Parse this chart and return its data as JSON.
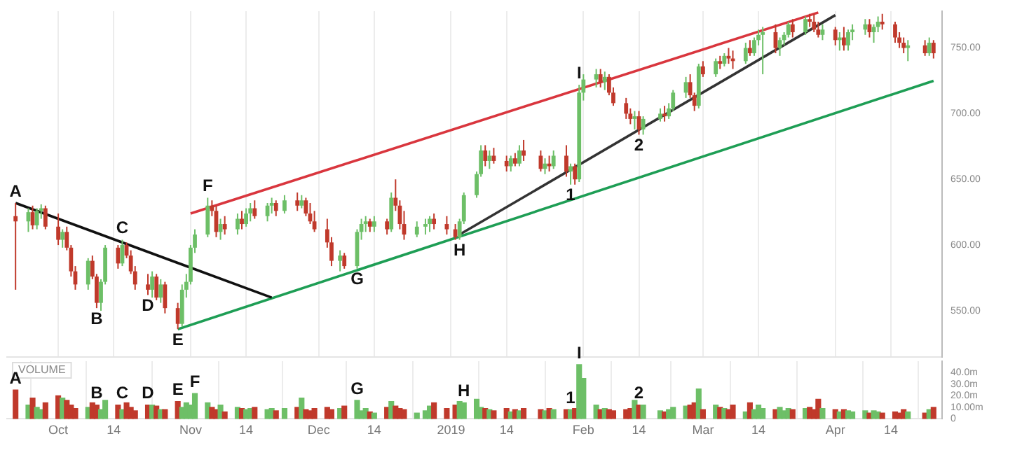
{
  "chart_data": [
    {
      "type": "candlestick",
      "tick_labels": "y",
      "grid": "x",
      "xlim": [
        "2018-09-19",
        "2019-04-26"
      ],
      "xticks": [
        {
          "value": "2018-10-01",
          "label": null
        },
        {
          "value": "2018-10-14",
          "label": null
        },
        {
          "value": "2018-11-01",
          "label": null
        },
        {
          "value": "2018-11-14",
          "label": null
        },
        {
          "value": "2018-12-01",
          "label": null
        },
        {
          "value": "2018-12-14",
          "label": null
        },
        {
          "value": "2019-01-01",
          "label": null
        },
        {
          "value": "2019-01-14",
          "label": null
        },
        {
          "value": "2019-02-01",
          "label": null
        },
        {
          "value": "2019-02-14",
          "label": null
        },
        {
          "value": "2019-03-01",
          "label": null
        },
        {
          "value": "2019-03-14",
          "label": null
        },
        {
          "value": "2019-04-01",
          "label": null
        },
        {
          "value": "2019-04-14",
          "label": null
        }
      ],
      "ylim": [
        515,
        778
      ],
      "yticks": [
        {
          "value": 550,
          "label": "550.00"
        },
        {
          "value": 600,
          "label": "600.00"
        },
        {
          "value": 650,
          "label": "650.00"
        },
        {
          "value": 700,
          "label": "700.00"
        },
        {
          "value": 750,
          "label": "750.00"
        }
      ],
      "x": [
        "2018-09-21",
        "2018-09-24",
        "2018-09-25",
        "2018-09-26",
        "2018-09-27",
        "2018-09-28",
        "2018-10-01",
        "2018-10-02",
        "2018-10-03",
        "2018-10-04",
        "2018-10-05",
        "2018-10-08",
        "2018-10-09",
        "2018-10-10",
        "2018-10-11",
        "2018-10-12",
        "2018-10-15",
        "2018-10-16",
        "2018-10-17",
        "2018-10-18",
        "2018-10-19",
        "2018-10-22",
        "2018-10-23",
        "2018-10-24",
        "2018-10-25",
        "2018-10-26",
        "2018-10-29",
        "2018-10-30",
        "2018-10-31",
        "2018-11-01",
        "2018-11-02",
        "2018-11-05",
        "2018-11-06",
        "2018-11-07",
        "2018-11-08",
        "2018-11-09",
        "2018-11-12",
        "2018-11-13",
        "2018-11-14",
        "2018-11-15",
        "2018-11-16",
        "2018-11-19",
        "2018-11-20",
        "2018-11-21",
        "2018-11-23",
        "2018-11-26",
        "2018-11-27",
        "2018-11-28",
        "2018-11-29",
        "2018-11-30",
        "2018-12-03",
        "2018-12-04",
        "2018-12-06",
        "2018-12-07",
        "2018-12-10",
        "2018-12-11",
        "2018-12-12",
        "2018-12-13",
        "2018-12-14",
        "2018-12-17",
        "2018-12-18",
        "2018-12-19",
        "2018-12-20",
        "2018-12-21",
        "2018-12-24",
        "2018-12-26",
        "2018-12-27",
        "2018-12-28",
        "2018-12-31",
        "2019-01-02",
        "2019-01-03",
        "2019-01-04",
        "2019-01-07",
        "2019-01-08",
        "2019-01-09",
        "2019-01-10",
        "2019-01-11",
        "2019-01-14",
        "2019-01-15",
        "2019-01-16",
        "2019-01-17",
        "2019-01-18",
        "2019-01-22",
        "2019-01-23",
        "2019-01-24",
        "2019-01-25",
        "2019-01-28",
        "2019-01-29",
        "2019-01-30",
        "2019-01-31",
        "2019-02-01",
        "2019-02-04",
        "2019-02-05",
        "2019-02-06",
        "2019-02-07",
        "2019-02-08",
        "2019-02-11",
        "2019-02-12",
        "2019-02-13",
        "2019-02-14",
        "2019-02-15",
        "2019-02-19",
        "2019-02-20",
        "2019-02-21",
        "2019-02-22",
        "2019-02-25",
        "2019-02-26",
        "2019-02-27",
        "2019-02-28",
        "2019-03-01",
        "2019-03-04",
        "2019-03-05",
        "2019-03-06",
        "2019-03-07",
        "2019-03-08",
        "2019-03-11",
        "2019-03-12",
        "2019-03-13",
        "2019-03-14",
        "2019-03-15",
        "2019-03-18",
        "2019-03-19",
        "2019-03-20",
        "2019-03-21",
        "2019-03-22",
        "2019-03-25",
        "2019-03-26",
        "2019-03-27",
        "2019-03-28",
        "2019-03-29",
        "2019-04-01",
        "2019-04-02",
        "2019-04-03",
        "2019-04-04",
        "2019-04-05",
        "2019-04-08",
        "2019-04-09",
        "2019-04-10",
        "2019-04-11",
        "2019-04-12",
        "2019-04-15",
        "2019-04-16",
        "2019-04-17",
        "2019-04-18",
        "2019-04-22",
        "2019-04-23",
        "2019-04-24"
      ],
      "ohlc": [
        [
          622,
          632,
          566,
          618
        ],
        [
          618,
          628,
          610,
          625
        ],
        [
          625,
          630,
          612,
          615
        ],
        [
          615,
          628,
          612,
          626
        ],
        [
          626,
          631,
          620,
          628
        ],
        [
          628,
          630,
          612,
          614
        ],
        [
          614,
          624,
          600,
          604
        ],
        [
          604,
          612,
          598,
          610
        ],
        [
          610,
          614,
          596,
          598
        ],
        [
          598,
          600,
          576,
          580
        ],
        [
          580,
          584,
          566,
          570
        ],
        [
          570,
          590,
          566,
          588
        ],
        [
          588,
          592,
          574,
          576
        ],
        [
          576,
          578,
          552,
          556
        ],
        [
          556,
          574,
          550,
          572
        ],
        [
          572,
          600,
          570,
          598
        ],
        [
          598,
          600,
          582,
          586
        ],
        [
          586,
          604,
          584,
          600
        ],
        [
          600,
          602,
          590,
          592
        ],
        [
          592,
          596,
          578,
          580
        ],
        [
          580,
          584,
          566,
          570
        ],
        [
          570,
          578,
          562,
          566
        ],
        [
          566,
          580,
          560,
          576
        ],
        [
          576,
          578,
          558,
          560
        ],
        [
          560,
          574,
          556,
          570
        ],
        [
          570,
          572,
          548,
          552
        ],
        [
          552,
          556,
          536,
          540
        ],
        [
          540,
          570,
          538,
          566
        ],
        [
          566,
          578,
          560,
          572
        ],
        [
          572,
          600,
          570,
          598
        ],
        [
          598,
          612,
          594,
          608
        ],
        [
          608,
          636,
          606,
          630
        ],
        [
          630,
          634,
          622,
          626
        ],
        [
          626,
          630,
          606,
          610
        ],
        [
          610,
          620,
          604,
          616
        ],
        [
          616,
          622,
          608,
          612
        ],
        [
          612,
          624,
          608,
          620
        ],
        [
          620,
          626,
          612,
          616
        ],
        [
          616,
          628,
          614,
          624
        ],
        [
          624,
          632,
          618,
          628
        ],
        [
          628,
          634,
          620,
          622
        ],
        [
          622,
          632,
          618,
          630
        ],
        [
          630,
          636,
          624,
          632
        ],
        [
          632,
          634,
          622,
          626
        ],
        [
          626,
          638,
          624,
          634
        ],
        [
          634,
          640,
          626,
          630
        ],
        [
          630,
          638,
          628,
          634
        ],
        [
          634,
          636,
          622,
          624
        ],
        [
          624,
          632,
          616,
          618
        ],
        [
          618,
          626,
          610,
          612
        ],
        [
          612,
          620,
          598,
          602
        ],
        [
          602,
          606,
          584,
          588
        ],
        [
          588,
          596,
          580,
          592
        ],
        [
          592,
          594,
          582,
          584
        ],
        [
          584,
          612,
          582,
          610
        ],
        [
          610,
          620,
          604,
          616
        ],
        [
          616,
          622,
          610,
          618
        ],
        [
          618,
          620,
          610,
          614
        ],
        [
          614,
          622,
          610,
          618
        ],
        [
          618,
          620,
          608,
          612
        ],
        [
          612,
          640,
          610,
          636
        ],
        [
          636,
          650,
          626,
          630
        ],
        [
          630,
          634,
          612,
          616
        ],
        [
          616,
          626,
          604,
          608
        ],
        [
          608,
          618,
          606,
          614
        ],
        [
          614,
          620,
          608,
          616
        ],
        [
          616,
          622,
          610,
          620
        ],
        [
          620,
          624,
          612,
          616
        ],
        [
          616,
          622,
          608,
          612
        ],
        [
          612,
          616,
          604,
          606
        ],
        [
          606,
          620,
          604,
          618
        ],
        [
          618,
          640,
          616,
          638
        ],
        [
          638,
          656,
          636,
          654
        ],
        [
          654,
          676,
          652,
          672
        ],
        [
          672,
          676,
          660,
          664
        ],
        [
          664,
          672,
          658,
          668
        ],
        [
          668,
          674,
          662,
          664
        ],
        [
          664,
          668,
          656,
          660
        ],
        [
          660,
          668,
          656,
          666
        ],
        [
          666,
          670,
          660,
          662
        ],
        [
          662,
          676,
          660,
          672
        ],
        [
          672,
          680,
          664,
          668
        ],
        [
          668,
          672,
          656,
          658
        ],
        [
          658,
          666,
          654,
          662
        ],
        [
          662,
          668,
          656,
          660
        ],
        [
          660,
          672,
          658,
          668
        ],
        [
          668,
          676,
          652,
          656
        ],
        [
          656,
          662,
          646,
          660
        ],
        [
          660,
          662,
          646,
          650
        ],
        [
          650,
          722,
          648,
          716
        ],
        [
          716,
          730,
          710,
          726
        ],
        [
          726,
          734,
          720,
          730
        ],
        [
          730,
          734,
          720,
          724
        ],
        [
          724,
          732,
          718,
          728
        ],
        [
          728,
          730,
          714,
          716
        ],
        [
          716,
          720,
          706,
          708
        ],
        [
          708,
          712,
          696,
          700
        ],
        [
          700,
          704,
          692,
          696
        ],
        [
          696,
          702,
          688,
          698
        ],
        [
          698,
          702,
          684,
          688
        ],
        [
          688,
          698,
          684,
          696
        ],
        [
          696,
          704,
          694,
          700
        ],
        [
          700,
          706,
          694,
          698
        ],
        [
          698,
          708,
          696,
          704
        ],
        [
          704,
          718,
          702,
          716
        ],
        [
          716,
          728,
          712,
          724
        ],
        [
          724,
          730,
          712,
          714
        ],
        [
          714,
          716,
          702,
          706
        ],
        [
          706,
          738,
          704,
          736
        ],
        [
          736,
          740,
          728,
          730
        ],
        [
          730,
          742,
          728,
          740
        ],
        [
          740,
          744,
          734,
          738
        ],
        [
          738,
          746,
          736,
          744
        ],
        [
          744,
          750,
          738,
          742
        ],
        [
          742,
          748,
          734,
          740
        ],
        [
          740,
          754,
          738,
          750
        ],
        [
          750,
          756,
          744,
          746
        ],
        [
          746,
          758,
          744,
          756
        ],
        [
          756,
          764,
          752,
          760
        ],
        [
          760,
          766,
          730,
          762
        ],
        [
          762,
          768,
          746,
          750
        ],
        [
          750,
          758,
          744,
          756
        ],
        [
          756,
          762,
          752,
          760
        ],
        [
          760,
          770,
          758,
          768
        ],
        [
          768,
          772,
          758,
          762
        ],
        [
          762,
          774,
          760,
          772
        ],
        [
          772,
          776,
          766,
          770
        ],
        [
          770,
          776,
          762,
          764
        ],
        [
          764,
          770,
          758,
          760
        ],
        [
          760,
          768,
          756,
          764
        ],
        [
          764,
          766,
          752,
          756
        ],
        [
          756,
          762,
          748,
          758
        ],
        [
          758,
          766,
          748,
          752
        ],
        [
          752,
          764,
          748,
          762
        ],
        [
          762,
          768,
          756,
          764
        ],
        [
          764,
          772,
          760,
          768
        ],
        [
          768,
          772,
          758,
          762
        ],
        [
          762,
          768,
          754,
          766
        ],
        [
          766,
          774,
          762,
          770
        ],
        [
          770,
          776,
          764,
          768
        ],
        [
          768,
          770,
          754,
          758
        ],
        [
          758,
          762,
          750,
          754
        ],
        [
          754,
          758,
          746,
          750
        ],
        [
          750,
          756,
          740,
          752
        ],
        [
          752,
          756,
          744,
          746
        ],
        [
          746,
          758,
          744,
          754
        ],
        [
          754,
          756,
          742,
          746
        ]
      ],
      "colors": [
        "#c0392b",
        "#6dbf67",
        "#c0392b",
        "#6dbf67",
        "#6dbf67",
        "#c0392b",
        "#c0392b",
        "#6dbf67",
        "#c0392b",
        "#c0392b",
        "#c0392b",
        "#6dbf67",
        "#c0392b",
        "#c0392b",
        "#6dbf67",
        "#6dbf67",
        "#c0392b",
        "#6dbf67",
        "#c0392b",
        "#c0392b",
        "#c0392b",
        "#c0392b",
        "#6dbf67",
        "#c0392b",
        "#6dbf67",
        "#c0392b",
        "#c0392b",
        "#6dbf67",
        "#6dbf67",
        "#6dbf67",
        "#6dbf67",
        "#6dbf67",
        "#c0392b",
        "#c0392b",
        "#6dbf67",
        "#c0392b",
        "#6dbf67",
        "#c0392b",
        "#6dbf67",
        "#6dbf67",
        "#c0392b",
        "#6dbf67",
        "#6dbf67",
        "#c0392b",
        "#6dbf67",
        "#c0392b",
        "#6dbf67",
        "#c0392b",
        "#c0392b",
        "#c0392b",
        "#c0392b",
        "#c0392b",
        "#6dbf67",
        "#c0392b",
        "#6dbf67",
        "#6dbf67",
        "#6dbf67",
        "#c0392b",
        "#6dbf67",
        "#c0392b",
        "#6dbf67",
        "#c0392b",
        "#c0392b",
        "#c0392b",
        "#6dbf67",
        "#6dbf67",
        "#6dbf67",
        "#c0392b",
        "#c0392b",
        "#c0392b",
        "#6dbf67",
        "#6dbf67",
        "#6dbf67",
        "#6dbf67",
        "#c0392b",
        "#6dbf67",
        "#c0392b",
        "#c0392b",
        "#6dbf67",
        "#c0392b",
        "#6dbf67",
        "#c0392b",
        "#c0392b",
        "#6dbf67",
        "#c0392b",
        "#6dbf67",
        "#c0392b",
        "#6dbf67",
        "#c0392b",
        "#6dbf67",
        "#6dbf67",
        "#6dbf67",
        "#c0392b",
        "#6dbf67",
        "#c0392b",
        "#c0392b",
        "#c0392b",
        "#c0392b",
        "#6dbf67",
        "#c0392b",
        "#6dbf67",
        "#6dbf67",
        "#c0392b",
        "#6dbf67",
        "#6dbf67",
        "#6dbf67",
        "#c0392b",
        "#c0392b",
        "#6dbf67",
        "#c0392b",
        "#6dbf67",
        "#c0392b",
        "#6dbf67",
        "#c0392b",
        "#c0392b",
        "#6dbf67",
        "#c0392b",
        "#6dbf67",
        "#6dbf67",
        "#6dbf67",
        "#c0392b",
        "#6dbf67",
        "#6dbf67",
        "#6dbf67",
        "#c0392b",
        "#6dbf67",
        "#c0392b",
        "#c0392b",
        "#c0392b",
        "#6dbf67",
        "#c0392b",
        "#6dbf67",
        "#c0392b",
        "#6dbf67",
        "#6dbf67",
        "#6dbf67",
        "#c0392b",
        "#6dbf67",
        "#6dbf67",
        "#c0392b",
        "#c0392b",
        "#c0392b",
        "#c0392b",
        "#6dbf67",
        "#c0392b",
        "#6dbf67",
        "#c0392b"
      ],
      "series": [
        {
          "type": "line",
          "color": "#111111",
          "x": [
            "2018-09-21",
            "2018-11-20"
          ],
          "values": [
            632,
            560
          ]
        },
        {
          "type": "line",
          "color": "#d9363e",
          "x": [
            "2018-11-01",
            "2019-03-28"
          ],
          "values": [
            624,
            777
          ]
        },
        {
          "type": "line",
          "color": "#1e9e55",
          "x": [
            "2018-10-29",
            "2019-04-24"
          ],
          "values": [
            536,
            725
          ]
        },
        {
          "type": "line",
          "color": "#333333",
          "x": [
            "2019-01-03",
            "2019-04-01"
          ],
          "values": [
            608,
            775
          ]
        }
      ],
      "annotations": [
        {
          "text": "A",
          "x": "2018-09-21",
          "y": 632
        },
        {
          "text": "B",
          "x": "2018-10-10",
          "y": 552
        },
        {
          "text": "C",
          "x": "2018-10-16",
          "y": 604
        },
        {
          "text": "D",
          "x": "2018-10-22",
          "y": 562
        },
        {
          "text": "E",
          "x": "2018-10-29",
          "y": 536
        },
        {
          "text": "F",
          "x": "2018-11-05",
          "y": 636
        },
        {
          "text": "G",
          "x": "2018-12-10",
          "y": 582
        },
        {
          "text": "H",
          "x": "2019-01-03",
          "y": 604
        },
        {
          "text": "I",
          "x": "2019-01-31",
          "y": 722
        },
        {
          "text": "1",
          "x": "2019-01-29",
          "y": 646
        },
        {
          "text": "2",
          "x": "2019-02-14",
          "y": 684
        }
      ]
    },
    {
      "type": "bar",
      "grid": "x",
      "xlim": [
        "2018-09-19",
        "2019-04-26"
      ],
      "xticks": [
        {
          "value": "2018-10-01",
          "label": "Oct"
        },
        {
          "value": "2018-10-14",
          "label": "14"
        },
        {
          "value": "2018-11-01",
          "label": "Nov"
        },
        {
          "value": "2018-11-14",
          "label": "14"
        },
        {
          "value": "2018-12-01",
          "label": "Dec"
        },
        {
          "value": "2018-12-14",
          "label": "14"
        },
        {
          "value": "2019-01-01",
          "label": "2019"
        },
        {
          "value": "2019-01-14",
          "label": "14"
        },
        {
          "value": "2019-02-01",
          "label": "Feb"
        },
        {
          "value": "2019-02-14",
          "label": "14"
        },
        {
          "value": "2019-03-01",
          "label": "Mar"
        },
        {
          "value": "2019-03-14",
          "label": "14"
        },
        {
          "value": "2019-04-01",
          "label": "Apr"
        },
        {
          "value": "2019-04-14",
          "label": "14"
        }
      ],
      "ylim": [
        0,
        50
      ],
      "yticks": [
        0,
        {
          "value": 10,
          "label": "10.00m"
        },
        {
          "value": 20,
          "label": "20.0m"
        },
        {
          "value": 30,
          "label": "30.0m"
        },
        {
          "value": 40,
          "label": "40.0m"
        }
      ],
      "x": [
        "2018-09-21",
        "2018-09-24",
        "2018-09-25",
        "2018-09-26",
        "2018-09-27",
        "2018-09-28",
        "2018-10-01",
        "2018-10-02",
        "2018-10-03",
        "2018-10-04",
        "2018-10-05",
        "2018-10-08",
        "2018-10-09",
        "2018-10-10",
        "2018-10-11",
        "2018-10-12",
        "2018-10-15",
        "2018-10-16",
        "2018-10-17",
        "2018-10-18",
        "2018-10-19",
        "2018-10-22",
        "2018-10-23",
        "2018-10-24",
        "2018-10-25",
        "2018-10-26",
        "2018-10-29",
        "2018-10-30",
        "2018-10-31",
        "2018-11-01",
        "2018-11-02",
        "2018-11-05",
        "2018-11-06",
        "2018-11-07",
        "2018-11-08",
        "2018-11-09",
        "2018-11-12",
        "2018-11-13",
        "2018-11-14",
        "2018-11-15",
        "2018-11-16",
        "2018-11-19",
        "2018-11-20",
        "2018-11-21",
        "2018-11-23",
        "2018-11-26",
        "2018-11-27",
        "2018-11-28",
        "2018-11-29",
        "2018-11-30",
        "2018-12-03",
        "2018-12-04",
        "2018-12-06",
        "2018-12-07",
        "2018-12-10",
        "2018-12-11",
        "2018-12-12",
        "2018-12-13",
        "2018-12-14",
        "2018-12-17",
        "2018-12-18",
        "2018-12-19",
        "2018-12-20",
        "2018-12-21",
        "2018-12-24",
        "2018-12-26",
        "2018-12-27",
        "2018-12-28",
        "2018-12-31",
        "2019-01-02",
        "2019-01-03",
        "2019-01-04",
        "2019-01-07",
        "2019-01-08",
        "2019-01-09",
        "2019-01-10",
        "2019-01-11",
        "2019-01-14",
        "2019-01-15",
        "2019-01-16",
        "2019-01-17",
        "2019-01-18",
        "2019-01-22",
        "2019-01-23",
        "2019-01-24",
        "2019-01-25",
        "2019-01-28",
        "2019-01-29",
        "2019-01-30",
        "2019-01-31",
        "2019-02-01",
        "2019-02-04",
        "2019-02-05",
        "2019-02-06",
        "2019-02-07",
        "2019-02-08",
        "2019-02-11",
        "2019-02-12",
        "2019-02-13",
        "2019-02-14",
        "2019-02-15",
        "2019-02-19",
        "2019-02-20",
        "2019-02-21",
        "2019-02-22",
        "2019-02-25",
        "2019-02-26",
        "2019-02-27",
        "2019-02-28",
        "2019-03-01",
        "2019-03-04",
        "2019-03-05",
        "2019-03-06",
        "2019-03-07",
        "2019-03-08",
        "2019-03-11",
        "2019-03-12",
        "2019-03-13",
        "2019-03-14",
        "2019-03-15",
        "2019-03-18",
        "2019-03-19",
        "2019-03-20",
        "2019-03-21",
        "2019-03-22",
        "2019-03-25",
        "2019-03-26",
        "2019-03-27",
        "2019-03-28",
        "2019-03-29",
        "2019-04-01",
        "2019-04-02",
        "2019-04-03",
        "2019-04-04",
        "2019-04-05",
        "2019-04-08",
        "2019-04-09",
        "2019-04-10",
        "2019-04-11",
        "2019-04-12",
        "2019-04-15",
        "2019-04-16",
        "2019-04-17",
        "2019-04-18",
        "2019-04-22",
        "2019-04-23",
        "2019-04-24"
      ],
      "values": [
        25,
        12,
        18,
        10,
        8,
        14,
        20,
        18,
        16,
        12,
        9,
        10,
        14,
        12,
        8,
        16,
        12,
        8,
        14,
        10,
        7,
        12,
        12,
        11,
        8,
        8,
        15,
        10,
        14,
        12,
        22,
        14,
        10,
        8,
        12,
        6,
        10,
        9,
        8,
        9,
        10,
        8,
        9,
        7,
        9,
        10,
        18,
        8,
        7,
        9,
        10,
        8,
        9,
        11,
        16,
        7,
        9,
        6,
        5,
        10,
        15,
        11,
        9,
        8,
        5,
        7,
        11,
        14,
        9,
        12,
        15,
        14,
        17,
        10,
        9,
        8,
        7,
        9,
        6,
        8,
        7,
        9,
        8,
        7,
        9,
        8,
        8,
        8,
        9,
        47,
        35,
        12,
        8,
        9,
        8,
        7,
        8,
        9,
        16,
        12,
        12,
        7,
        6,
        8,
        10,
        11,
        12,
        14,
        26,
        8,
        12,
        10,
        9,
        8,
        12,
        6,
        14,
        8,
        12,
        9,
        8,
        10,
        7,
        9,
        8,
        9,
        10,
        8,
        17,
        9,
        8,
        6,
        8,
        7,
        6,
        7,
        5,
        7,
        6,
        5,
        6,
        5,
        8,
        6,
        5,
        8,
        10
      ],
      "colors": [
        "#c0392b",
        "#6dbf67",
        "#c0392b",
        "#6dbf67",
        "#6dbf67",
        "#c0392b",
        "#c0392b",
        "#6dbf67",
        "#c0392b",
        "#c0392b",
        "#c0392b",
        "#6dbf67",
        "#c0392b",
        "#c0392b",
        "#6dbf67",
        "#6dbf67",
        "#c0392b",
        "#6dbf67",
        "#c0392b",
        "#c0392b",
        "#c0392b",
        "#c0392b",
        "#6dbf67",
        "#c0392b",
        "#6dbf67",
        "#c0392b",
        "#c0392b",
        "#6dbf67",
        "#6dbf67",
        "#6dbf67",
        "#6dbf67",
        "#6dbf67",
        "#c0392b",
        "#c0392b",
        "#6dbf67",
        "#c0392b",
        "#6dbf67",
        "#c0392b",
        "#6dbf67",
        "#6dbf67",
        "#c0392b",
        "#6dbf67",
        "#6dbf67",
        "#c0392b",
        "#6dbf67",
        "#c0392b",
        "#6dbf67",
        "#c0392b",
        "#c0392b",
        "#c0392b",
        "#c0392b",
        "#c0392b",
        "#6dbf67",
        "#c0392b",
        "#6dbf67",
        "#6dbf67",
        "#6dbf67",
        "#c0392b",
        "#6dbf67",
        "#c0392b",
        "#6dbf67",
        "#c0392b",
        "#c0392b",
        "#c0392b",
        "#6dbf67",
        "#6dbf67",
        "#6dbf67",
        "#c0392b",
        "#c0392b",
        "#c0392b",
        "#6dbf67",
        "#6dbf67",
        "#6dbf67",
        "#6dbf67",
        "#c0392b",
        "#6dbf67",
        "#c0392b",
        "#c0392b",
        "#6dbf67",
        "#c0392b",
        "#6dbf67",
        "#c0392b",
        "#c0392b",
        "#6dbf67",
        "#c0392b",
        "#6dbf67",
        "#c0392b",
        "#6dbf67",
        "#c0392b",
        "#6dbf67",
        "#6dbf67",
        "#6dbf67",
        "#c0392b",
        "#6dbf67",
        "#c0392b",
        "#c0392b",
        "#c0392b",
        "#c0392b",
        "#6dbf67",
        "#c0392b",
        "#6dbf67",
        "#6dbf67",
        "#c0392b",
        "#6dbf67",
        "#6dbf67",
        "#6dbf67",
        "#c0392b",
        "#c0392b",
        "#6dbf67",
        "#c0392b",
        "#6dbf67",
        "#c0392b",
        "#6dbf67",
        "#c0392b",
        "#c0392b",
        "#6dbf67",
        "#c0392b",
        "#6dbf67",
        "#6dbf67",
        "#6dbf67",
        "#c0392b",
        "#6dbf67",
        "#6dbf67",
        "#6dbf67",
        "#c0392b",
        "#6dbf67",
        "#c0392b",
        "#c0392b",
        "#c0392b",
        "#6dbf67",
        "#c0392b",
        "#6dbf67",
        "#c0392b",
        "#6dbf67",
        "#6dbf67",
        "#6dbf67",
        "#c0392b",
        "#6dbf67",
        "#6dbf67",
        "#c0392b",
        "#c0392b",
        "#c0392b",
        "#c0392b",
        "#6dbf67",
        "#c0392b",
        "#6dbf67",
        "#c0392b"
      ],
      "annotations": [
        "VOLUME",
        {
          "text": "A",
          "x": "2018-09-21",
          "y": 25
        },
        {
          "text": "B",
          "x": "2018-10-10",
          "y": 12
        },
        {
          "text": "C",
          "x": "2018-10-16",
          "y": 12
        },
        {
          "text": "D",
          "x": "2018-10-22",
          "y": 12
        },
        {
          "text": "E",
          "x": "2018-10-29",
          "y": 15
        },
        {
          "text": "F",
          "x": "2018-11-02",
          "y": 22
        },
        {
          "text": "G",
          "x": "2018-12-10",
          "y": 16
        },
        {
          "text": "H",
          "x": "2019-01-04",
          "y": 14
        },
        {
          "text": "1",
          "x": "2019-01-29",
          "y": 8
        },
        {
          "text": "I",
          "x": "2019-01-31",
          "y": 47
        },
        {
          "text": "2",
          "x": "2019-02-14",
          "y": 12
        }
      ]
    }
  ]
}
